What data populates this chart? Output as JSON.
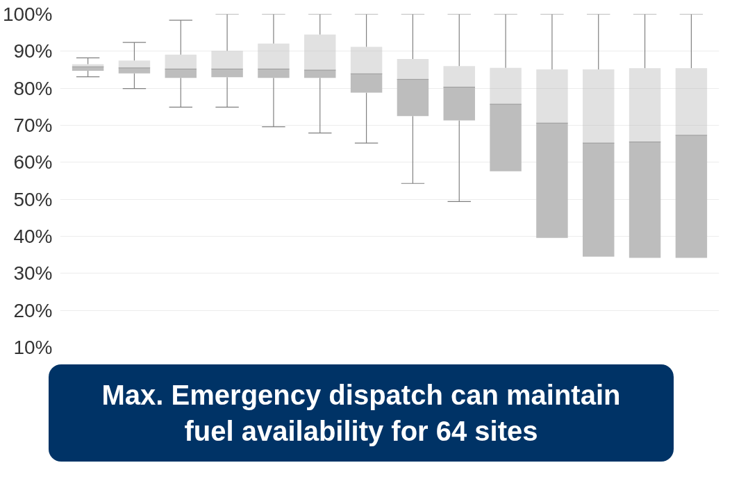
{
  "chart_data": {
    "type": "box",
    "categories": [
      null,
      null,
      null,
      null,
      null,
      null,
      null,
      null,
      null,
      null,
      null,
      null,
      null,
      null
    ],
    "series": [
      {
        "color": "#bdbdbd",
        "boxes": [
          {
            "low": 83.1,
            "q1": 84.7,
            "median": 85.8,
            "q3": 86.5,
            "high": 88.2
          },
          {
            "low": 79.9,
            "q1": 84,
            "median": 85.5,
            "q3": 87.5,
            "high": 92.4
          },
          {
            "low": 74.9,
            "q1": 82.8,
            "median": 85.2,
            "q3": 89.1,
            "high": 98.4
          },
          {
            "low": 74.9,
            "q1": 83,
            "median": 85.2,
            "q3": 90.1,
            "high": 100
          },
          {
            "low": 69.6,
            "q1": 82.8,
            "median": 85.2,
            "q3": 92.1,
            "high": 100
          },
          {
            "low": 67.9,
            "q1": 82.8,
            "median": 84.9,
            "q3": 94.5,
            "high": 100
          },
          {
            "low": 65.2,
            "q1": 78.8,
            "median": 83.9,
            "q3": 91.2,
            "high": 100
          },
          {
            "low": 54.3,
            "q1": 72.5,
            "median": 82.4,
            "q3": 87.9,
            "high": 100
          },
          {
            "low": 49.4,
            "q1": 71.3,
            "median": 80.3,
            "q3": 86,
            "high": 100
          },
          {
            "low": null,
            "q1": 57.6,
            "median": 75.7,
            "q3": 85.5,
            "high": 100
          },
          {
            "low": null,
            "q1": 39.6,
            "median": 70.6,
            "q3": 85.1,
            "high": 100
          },
          {
            "low": null,
            "q1": 34.5,
            "median": 65.2,
            "q3": 85.1,
            "high": 100
          },
          {
            "low": null,
            "q1": 34.2,
            "median": 65.5,
            "q3": 85.4,
            "high": 100
          },
          {
            "low": null,
            "q1": 34.2,
            "median": 67.3,
            "q3": 85.4,
            "high": 100
          }
        ]
      }
    ],
    "ylim": [
      10,
      100
    ],
    "yticks": [
      {
        "value": 10,
        "label": "10%"
      },
      {
        "value": 20,
        "label": "20%"
      },
      {
        "value": 30,
        "label": "30%"
      },
      {
        "value": 40,
        "label": "40%"
      },
      {
        "value": 50,
        "label": "50%"
      },
      {
        "value": 60,
        "label": "60%"
      },
      {
        "value": 70,
        "label": "70%"
      },
      {
        "value": 80,
        "label": "80%"
      },
      {
        "value": 90,
        "label": "90%"
      },
      {
        "value": 100,
        "label": "100%"
      }
    ],
    "grid": "y",
    "tick_labels": "y",
    "annotations": [
      "Max. Emergency dispatch can maintain fuel availability for 64 sites"
    ]
  }
}
